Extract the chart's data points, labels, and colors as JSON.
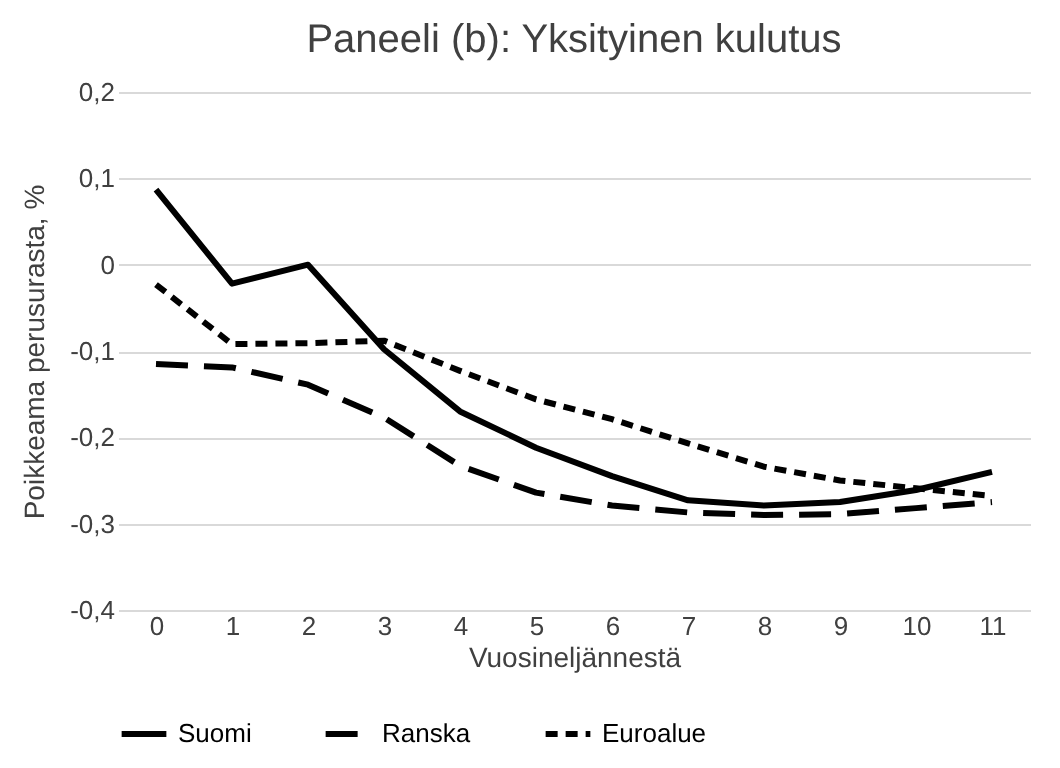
{
  "chart_data": {
    "type": "line",
    "title": "Paneeli (b): Yksityinen kulutus",
    "xlabel": "Vuosineljännestä",
    "ylabel": "Poikkeama perusurasta, %",
    "categories": [
      "0",
      "1",
      "2",
      "3",
      "4",
      "5",
      "6",
      "7",
      "8",
      "9",
      "10",
      "11"
    ],
    "series": [
      {
        "name": "Suomi",
        "color": "#000000",
        "line_style": "solid",
        "values": [
          0.087,
          -0.022,
          0,
          -0.098,
          -0.17,
          -0.212,
          -0.245,
          -0.273,
          -0.279,
          -0.275,
          -0.261,
          -0.24
        ]
      },
      {
        "name": "Ranska",
        "color": "#000000",
        "line_style": "dashed",
        "values": [
          -0.115,
          -0.119,
          -0.139,
          -0.177,
          -0.233,
          -0.264,
          -0.279,
          -0.287,
          -0.29,
          -0.289,
          -0.282,
          -0.275
        ]
      },
      {
        "name": "Euroalue",
        "color": "#000000",
        "line_style": "dotted",
        "values": [
          -0.023,
          -0.092,
          -0.091,
          -0.088,
          -0.123,
          -0.156,
          -0.179,
          -0.207,
          -0.234,
          -0.25,
          -0.259,
          -0.268
        ]
      }
    ],
    "ylim": [
      -0.4,
      0.2
    ],
    "yticks": [
      {
        "value": -0.4,
        "label": "-0,4"
      },
      {
        "value": -0.3,
        "label": "-0,3"
      },
      {
        "value": -0.2,
        "label": "-0,2"
      },
      {
        "value": -0.1,
        "label": "-0,1"
      },
      {
        "value": 0,
        "label": "0"
      },
      {
        "value": 0.1,
        "label": "0,1"
      },
      {
        "value": 0.2,
        "label": "0,2"
      }
    ],
    "grid": "y",
    "legend": "bottom",
    "marker": "none"
  }
}
